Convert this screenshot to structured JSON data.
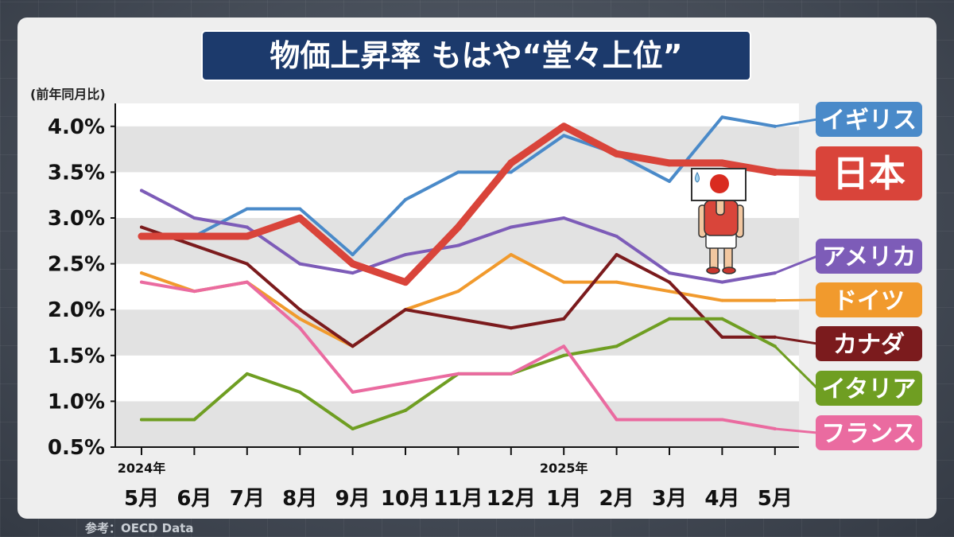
{
  "source": "参考：OECD Data",
  "chart_data": {
    "type": "line",
    "title": "物価上昇率 もはや“堂々上位”",
    "xlabel": "",
    "ylabel": "(前年同月比)",
    "categories": [
      "5月",
      "6月",
      "7月",
      "8月",
      "9月",
      "10月",
      "11月",
      "12月",
      "1月",
      "2月",
      "3月",
      "4月",
      "5月"
    ],
    "year_labels": [
      {
        "category_index": 0,
        "label": "2024年"
      },
      {
        "category_index": 8,
        "label": "2025年"
      }
    ],
    "yticks": [
      0.5,
      1.0,
      1.5,
      2.0,
      2.5,
      3.0,
      3.5,
      4.0
    ],
    "ytick_labels": [
      "0.5%",
      "1.0%",
      "1.5%",
      "2.0%",
      "2.5%",
      "3.0%",
      "3.5%",
      "4.0%"
    ],
    "ylim": [
      0.5,
      4.25
    ],
    "grid": true,
    "legend_placement": "right",
    "series": [
      {
        "name": "イギリス",
        "color": "#4a8ac9",
        "values": [
          2.8,
          2.8,
          3.1,
          3.1,
          2.6,
          3.2,
          3.5,
          3.5,
          3.9,
          3.7,
          3.4,
          4.1,
          4.0
        ]
      },
      {
        "name": "日本",
        "color": "#d9443a",
        "values": [
          2.8,
          2.8,
          2.8,
          3.0,
          2.5,
          2.3,
          2.9,
          3.6,
          4.0,
          3.7,
          3.6,
          3.6,
          3.5
        ]
      },
      {
        "name": "アメリカ",
        "color": "#7d5cb8",
        "values": [
          3.3,
          3.0,
          2.9,
          2.5,
          2.4,
          2.6,
          2.7,
          2.9,
          3.0,
          2.8,
          2.4,
          2.3,
          2.4
        ]
      },
      {
        "name": "ドイツ",
        "color": "#f19a2d",
        "values": [
          2.4,
          2.2,
          2.3,
          1.9,
          1.6,
          2.0,
          2.2,
          2.6,
          2.3,
          2.3,
          2.2,
          2.1,
          2.1
        ]
      },
      {
        "name": "カナダ",
        "color": "#7b1b1d",
        "values": [
          2.9,
          2.7,
          2.5,
          2.0,
          1.6,
          2.0,
          1.9,
          1.8,
          1.9,
          2.6,
          2.3,
          1.7,
          1.7
        ]
      },
      {
        "name": "イタリア",
        "color": "#6f9e22",
        "values": [
          0.8,
          0.8,
          1.3,
          1.1,
          0.7,
          0.9,
          1.3,
          1.3,
          1.5,
          1.6,
          1.9,
          1.9,
          1.6
        ]
      },
      {
        "name": "フランス",
        "color": "#ea6ba0",
        "values": [
          2.3,
          2.2,
          2.3,
          1.8,
          1.1,
          1.2,
          1.3,
          1.3,
          1.6,
          0.8,
          0.8,
          0.8,
          0.7
        ]
      }
    ]
  }
}
